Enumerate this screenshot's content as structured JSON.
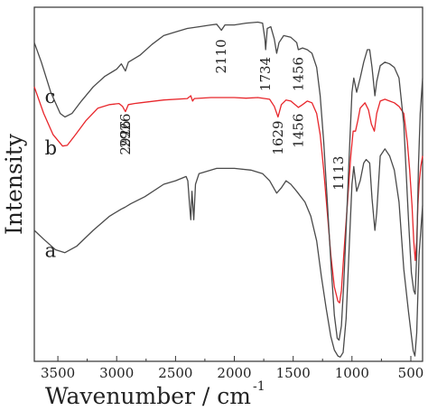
{
  "chart_data": {
    "type": "line",
    "xlabel": "Wavenumber / cm",
    "xlabel_superscript": "-1",
    "ylabel": "Intensity",
    "xlim": [
      3700,
      400
    ],
    "x_reversed": true,
    "x_ticks": [
      3500,
      3000,
      2500,
      2000,
      1500,
      1000,
      500
    ],
    "x_tick_labels": [
      "3500",
      "3000",
      "2500",
      "2000",
      "1500",
      "1000",
      "500"
    ],
    "y_ticks_shown": false,
    "grid": false,
    "legend": "none",
    "series": [
      {
        "name": "a",
        "color": "#4a4a4a",
        "points": [
          [
            3700,
            0.63
          ],
          [
            3620,
            0.655
          ],
          [
            3520,
            0.685
          ],
          [
            3440,
            0.693
          ],
          [
            3340,
            0.675
          ],
          [
            3200,
            0.63
          ],
          [
            3060,
            0.59
          ],
          [
            2960,
            0.57
          ],
          [
            2930,
            0.565
          ],
          [
            2880,
            0.555
          ],
          [
            2760,
            0.535
          ],
          [
            2600,
            0.5
          ],
          [
            2500,
            0.49
          ],
          [
            2410,
            0.478
          ],
          [
            2395,
            0.49
          ],
          [
            2380,
            0.56
          ],
          [
            2370,
            0.6
          ],
          [
            2360,
            0.52
          ],
          [
            2345,
            0.6
          ],
          [
            2330,
            0.5
          ],
          [
            2300,
            0.47
          ],
          [
            2150,
            0.455
          ],
          [
            2000,
            0.455
          ],
          [
            1860,
            0.46
          ],
          [
            1760,
            0.47
          ],
          [
            1700,
            0.49
          ],
          [
            1640,
            0.525
          ],
          [
            1600,
            0.51
          ],
          [
            1560,
            0.49
          ],
          [
            1520,
            0.5
          ],
          [
            1470,
            0.52
          ],
          [
            1400,
            0.55
          ],
          [
            1350,
            0.59
          ],
          [
            1300,
            0.66
          ],
          [
            1260,
            0.76
          ],
          [
            1220,
            0.85
          ],
          [
            1180,
            0.93
          ],
          [
            1150,
            0.968
          ],
          [
            1120,
            0.985
          ],
          [
            1100,
            0.988
          ],
          [
            1075,
            0.975
          ],
          [
            1050,
            0.88
          ],
          [
            1020,
            0.65
          ],
          [
            1000,
            0.5
          ],
          [
            985,
            0.45
          ],
          [
            960,
            0.52
          ],
          [
            930,
            0.49
          ],
          [
            900,
            0.44
          ],
          [
            880,
            0.43
          ],
          [
            850,
            0.44
          ],
          [
            830,
            0.54
          ],
          [
            805,
            0.63
          ],
          [
            790,
            0.58
          ],
          [
            760,
            0.42
          ],
          [
            720,
            0.4
          ],
          [
            680,
            0.42
          ],
          [
            640,
            0.46
          ],
          [
            600,
            0.55
          ],
          [
            560,
            0.74
          ],
          [
            520,
            0.86
          ],
          [
            480,
            0.97
          ],
          [
            465,
            0.985
          ],
          [
            450,
            0.92
          ],
          [
            430,
            0.7
          ],
          [
            400,
            0.56
          ]
        ]
      },
      {
        "name": "b",
        "color": "#e8262b",
        "points": [
          [
            3700,
            0.225
          ],
          [
            3620,
            0.3
          ],
          [
            3540,
            0.36
          ],
          [
            3460,
            0.392
          ],
          [
            3420,
            0.39
          ],
          [
            3350,
            0.36
          ],
          [
            3260,
            0.32
          ],
          [
            3160,
            0.285
          ],
          [
            3060,
            0.275
          ],
          [
            2980,
            0.272
          ],
          [
            2950,
            0.28
          ],
          [
            2926,
            0.295
          ],
          [
            2900,
            0.275
          ],
          [
            2850,
            0.272
          ],
          [
            2800,
            0.27
          ],
          [
            2600,
            0.262
          ],
          [
            2400,
            0.258
          ],
          [
            2370,
            0.25
          ],
          [
            2355,
            0.265
          ],
          [
            2340,
            0.258
          ],
          [
            2200,
            0.255
          ],
          [
            2000,
            0.255
          ],
          [
            1900,
            0.257
          ],
          [
            1800,
            0.255
          ],
          [
            1700,
            0.26
          ],
          [
            1660,
            0.28
          ],
          [
            1629,
            0.31
          ],
          [
            1600,
            0.275
          ],
          [
            1560,
            0.262
          ],
          [
            1520,
            0.265
          ],
          [
            1456,
            0.283
          ],
          [
            1420,
            0.275
          ],
          [
            1380,
            0.265
          ],
          [
            1340,
            0.27
          ],
          [
            1300,
            0.3
          ],
          [
            1270,
            0.36
          ],
          [
            1240,
            0.46
          ],
          [
            1210,
            0.58
          ],
          [
            1180,
            0.7
          ],
          [
            1150,
            0.79
          ],
          [
            1120,
            0.83
          ],
          [
            1105,
            0.835
          ],
          [
            1090,
            0.8
          ],
          [
            1070,
            0.7
          ],
          [
            1040,
            0.56
          ],
          [
            1010,
            0.42
          ],
          [
            990,
            0.35
          ],
          [
            970,
            0.35
          ],
          [
            950,
            0.32
          ],
          [
            930,
            0.285
          ],
          [
            890,
            0.27
          ],
          [
            860,
            0.29
          ],
          [
            835,
            0.33
          ],
          [
            810,
            0.35
          ],
          [
            790,
            0.3
          ],
          [
            760,
            0.265
          ],
          [
            720,
            0.26
          ],
          [
            680,
            0.265
          ],
          [
            640,
            0.27
          ],
          [
            600,
            0.28
          ],
          [
            560,
            0.3
          ],
          [
            530,
            0.38
          ],
          [
            510,
            0.46
          ],
          [
            490,
            0.56
          ],
          [
            475,
            0.66
          ],
          [
            462,
            0.715
          ],
          [
            450,
            0.66
          ],
          [
            440,
            0.56
          ],
          [
            430,
            0.5
          ],
          [
            415,
            0.45
          ],
          [
            400,
            0.42
          ]
        ]
      },
      {
        "name": "c",
        "color": "#4a4a4a",
        "points": [
          [
            3700,
            0.1
          ],
          [
            3640,
            0.155
          ],
          [
            3560,
            0.24
          ],
          [
            3480,
            0.3
          ],
          [
            3440,
            0.31
          ],
          [
            3380,
            0.3
          ],
          [
            3300,
            0.265
          ],
          [
            3200,
            0.225
          ],
          [
            3100,
            0.195
          ],
          [
            3000,
            0.175
          ],
          [
            2960,
            0.16
          ],
          [
            2926,
            0.18
          ],
          [
            2900,
            0.155
          ],
          [
            2800,
            0.135
          ],
          [
            2700,
            0.105
          ],
          [
            2600,
            0.08
          ],
          [
            2500,
            0.07
          ],
          [
            2400,
            0.06
          ],
          [
            2300,
            0.055
          ],
          [
            2200,
            0.05
          ],
          [
            2150,
            0.048
          ],
          [
            2110,
            0.065
          ],
          [
            2080,
            0.05
          ],
          [
            2000,
            0.05
          ],
          [
            1900,
            0.045
          ],
          [
            1800,
            0.042
          ],
          [
            1760,
            0.045
          ],
          [
            1740,
            0.09
          ],
          [
            1734,
            0.12
          ],
          [
            1720,
            0.06
          ],
          [
            1690,
            0.055
          ],
          [
            1660,
            0.09
          ],
          [
            1640,
            0.13
          ],
          [
            1620,
            0.1
          ],
          [
            1580,
            0.08
          ],
          [
            1520,
            0.085
          ],
          [
            1470,
            0.1
          ],
          [
            1456,
            0.12
          ],
          [
            1420,
            0.115
          ],
          [
            1380,
            0.12
          ],
          [
            1340,
            0.13
          ],
          [
            1300,
            0.17
          ],
          [
            1270,
            0.25
          ],
          [
            1240,
            0.38
          ],
          [
            1210,
            0.55
          ],
          [
            1180,
            0.72
          ],
          [
            1150,
            0.87
          ],
          [
            1125,
            0.935
          ],
          [
            1110,
            0.94
          ],
          [
            1090,
            0.9
          ],
          [
            1070,
            0.78
          ],
          [
            1040,
            0.55
          ],
          [
            1015,
            0.35
          ],
          [
            1000,
            0.24
          ],
          [
            985,
            0.2
          ],
          [
            960,
            0.24
          ],
          [
            930,
            0.2
          ],
          [
            900,
            0.155
          ],
          [
            870,
            0.12
          ],
          [
            850,
            0.12
          ],
          [
            830,
            0.17
          ],
          [
            805,
            0.25
          ],
          [
            790,
            0.21
          ],
          [
            760,
            0.165
          ],
          [
            720,
            0.155
          ],
          [
            680,
            0.16
          ],
          [
            640,
            0.17
          ],
          [
            600,
            0.2
          ],
          [
            560,
            0.33
          ],
          [
            520,
            0.6
          ],
          [
            495,
            0.75
          ],
          [
            475,
            0.8
          ],
          [
            463,
            0.81
          ],
          [
            450,
            0.7
          ],
          [
            435,
            0.45
          ],
          [
            420,
            0.3
          ],
          [
            400,
            0.2
          ]
        ]
      }
    ],
    "series_labels": [
      {
        "text": "a",
        "x": 3580,
        "y": 0.69
      },
      {
        "text": "b",
        "x": 3580,
        "y": 0.4
      },
      {
        "text": "c",
        "x": 3580,
        "y": 0.255
      }
    ],
    "annotations": [
      {
        "text": "2926",
        "x": 2926,
        "y": 0.32,
        "rotate": -90,
        "series": "c"
      },
      {
        "text": "2110",
        "x": 2110,
        "y": 0.09,
        "rotate": -90,
        "series": "c"
      },
      {
        "text": "1734",
        "x": 1734,
        "y": 0.14,
        "rotate": -90,
        "series": "c"
      },
      {
        "text": "1456",
        "x": 1456,
        "y": 0.14,
        "rotate": -90,
        "series": "c"
      },
      {
        "text": "2926",
        "x": 2926,
        "y": 0.3,
        "rotate": -90,
        "series": "b"
      },
      {
        "text": "1629",
        "x": 1629,
        "y": 0.32,
        "rotate": -90,
        "series": "b"
      },
      {
        "text": "1456",
        "x": 1456,
        "y": 0.3,
        "rotate": -90,
        "series": "b"
      },
      {
        "text": "1113",
        "x": 1113,
        "y": 0.42,
        "rotate": -90,
        "series": "b"
      }
    ]
  }
}
